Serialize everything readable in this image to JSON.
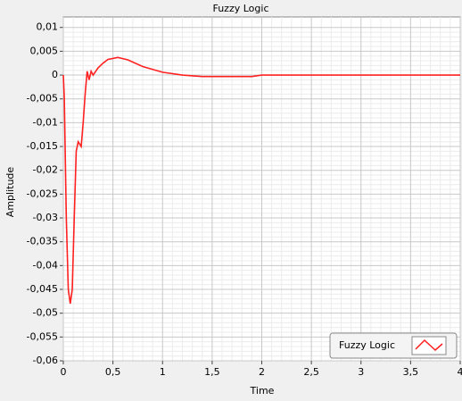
{
  "chart_data": {
    "type": "line",
    "title": "Fuzzy Logic",
    "x_label": "Time",
    "y_label": "Amplitude",
    "x": [
      0,
      0.01,
      0.03,
      0.05,
      0.07,
      0.09,
      0.11,
      0.13,
      0.15,
      0.18,
      0.2,
      0.22,
      0.24,
      0.26,
      0.28,
      0.3,
      0.35,
      0.4,
      0.45,
      0.55,
      0.65,
      0.8,
      1.0,
      1.2,
      1.4,
      1.9,
      2.0,
      4
    ],
    "series": [
      {
        "name": "Fuzzy Logic",
        "color": "#ff2020",
        "values": [
          0,
          -0.005,
          -0.03,
          -0.045,
          -0.048,
          -0.045,
          -0.03,
          -0.016,
          -0.014,
          -0.015,
          -0.01,
          -0.004,
          0.0008,
          -0.001,
          0.0008,
          0,
          0.0015,
          0.0025,
          0.0033,
          0.0037,
          0.0032,
          0.0018,
          0.0006,
          0,
          -0.0003,
          -0.0003,
          0,
          0
        ]
      }
    ],
    "xlim": [
      0,
      4
    ],
    "ylim": [
      -0.06,
      0.0122
    ],
    "xticks": [
      0,
      {
        "value": 0.5,
        "label": "0,5"
      },
      1,
      {
        "value": 1.5,
        "label": "1,5"
      },
      2,
      {
        "value": 2.5,
        "label": "2,5"
      },
      3,
      {
        "value": 3.5,
        "label": "3,5"
      },
      4
    ],
    "yticks": [
      {
        "value": 0.01,
        "label": "0,01"
      },
      {
        "value": 0.005,
        "label": "0,005"
      },
      0,
      {
        "value": -0.005,
        "label": "-0,005"
      },
      {
        "value": -0.01,
        "label": "-0,01"
      },
      {
        "value": -0.015,
        "label": "-0,015"
      },
      {
        "value": -0.02,
        "label": "-0,02"
      },
      {
        "value": -0.025,
        "label": "-0,025"
      },
      {
        "value": -0.03,
        "label": "-0,03"
      },
      {
        "value": -0.035,
        "label": "-0,035"
      },
      {
        "value": -0.04,
        "label": "-0,04"
      },
      {
        "value": -0.045,
        "label": "-0,045"
      },
      {
        "value": -0.05,
        "label": "-0,05"
      },
      {
        "value": -0.055,
        "label": "-0,055"
      },
      {
        "value": -0.06,
        "label": "-0,06"
      }
    ],
    "grid": true,
    "legend": "bottom-right"
  }
}
